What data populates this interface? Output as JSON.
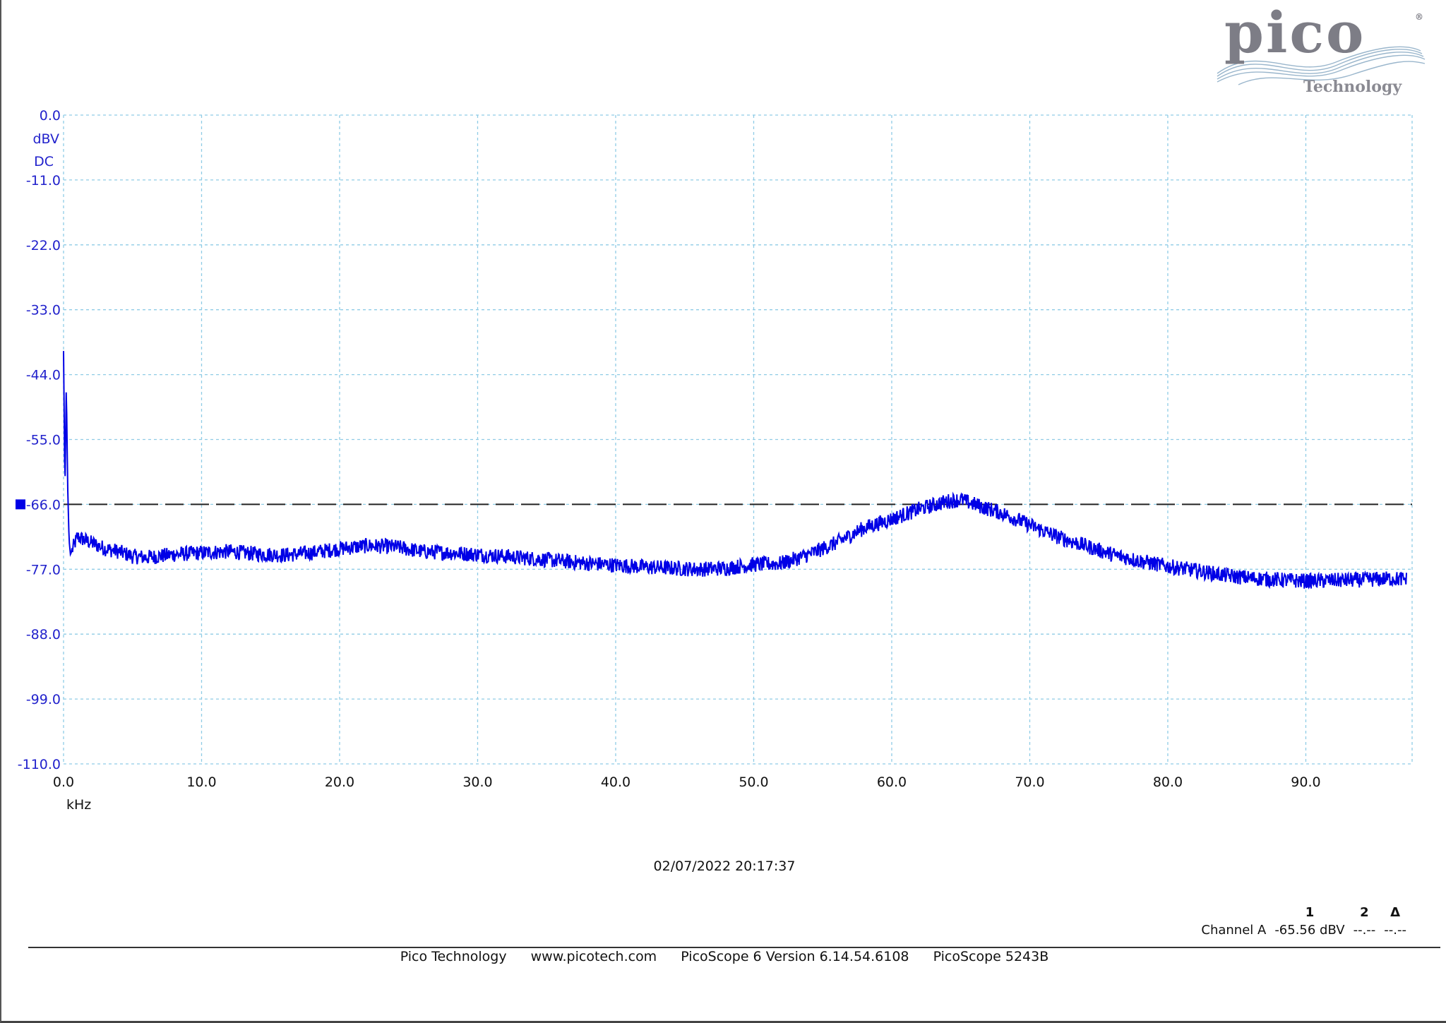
{
  "logo": {
    "word": "pico",
    "tagline": "Technology",
    "mark": "®"
  },
  "timestamp": "02/07/2022 20:17:37",
  "readout": {
    "headers": [
      "1",
      "2",
      "Δ"
    ],
    "row_label": "Channel A",
    "values": [
      "-65.56 dBV",
      "--.--",
      "--.--"
    ]
  },
  "footer": {
    "company": "Pico Technology",
    "website": "www.picotech.com",
    "software": "PicoScope 6 Version  6.14.54.6108",
    "device": "PicoScope 5243B"
  },
  "chart_data": {
    "type": "line",
    "title": "",
    "ylabel_unit": "dBV",
    "ylabel_coupling": "DC",
    "xlabel": "kHz",
    "xlim": [
      0,
      97.7
    ],
    "ylim": [
      -110,
      0
    ],
    "yticks": [
      "0.0",
      "-11.0",
      "-22.0",
      "-33.0",
      "-44.0",
      "-55.0",
      "-66.0",
      "-77.0",
      "-88.0",
      "-99.0",
      "-110.0"
    ],
    "xticks": [
      "0.0",
      "10.0",
      "20.0",
      "30.0",
      "40.0",
      "50.0",
      "60.0",
      "70.0",
      "80.0",
      "90.0"
    ],
    "grid": true,
    "reference_line": {
      "value": -66.0,
      "style": "dashed"
    },
    "series": [
      {
        "color": "#0000e6",
        "x": [
          0.0,
          0.1,
          0.2,
          0.3,
          0.4,
          0.5,
          1.0,
          2.0,
          3.0,
          4.0,
          5.0,
          6.0,
          8.0,
          10.0,
          12.0,
          14.0,
          16.0,
          18.0,
          20.0,
          22.0,
          24.0,
          26.0,
          28.0,
          30.0,
          32.0,
          34.0,
          36.0,
          38.0,
          40.0,
          42.0,
          44.0,
          46.0,
          48.0,
          50.0,
          52.0,
          54.0,
          56.0,
          58.0,
          60.0,
          62.0,
          64.0,
          65.0,
          66.0,
          68.0,
          70.0,
          72.0,
          74.0,
          76.0,
          78.0,
          80.0,
          82.0,
          84.0,
          86.0,
          88.0,
          90.0,
          92.0,
          94.0,
          96.0,
          97.3
        ],
        "y": [
          -40.0,
          -64.0,
          -45.5,
          -63.0,
          -72.0,
          -74.5,
          -71.5,
          -72.5,
          -73.5,
          -74.0,
          -74.8,
          -75.0,
          -74.5,
          -74.2,
          -74.0,
          -74.4,
          -74.6,
          -74.2,
          -73.5,
          -73.0,
          -73.2,
          -74.0,
          -74.2,
          -74.5,
          -74.8,
          -75.2,
          -75.6,
          -76.0,
          -76.3,
          -76.6,
          -76.8,
          -77.0,
          -76.8,
          -76.2,
          -76.0,
          -74.5,
          -72.5,
          -70.0,
          -68.5,
          -66.8,
          -65.5,
          -65.2,
          -66.0,
          -67.5,
          -69.5,
          -71.5,
          -73.0,
          -74.5,
          -75.6,
          -76.5,
          -77.2,
          -78.0,
          -78.5,
          -78.8,
          -79.0,
          -78.9,
          -78.8,
          -78.6,
          -78.7
        ]
      }
    ]
  }
}
